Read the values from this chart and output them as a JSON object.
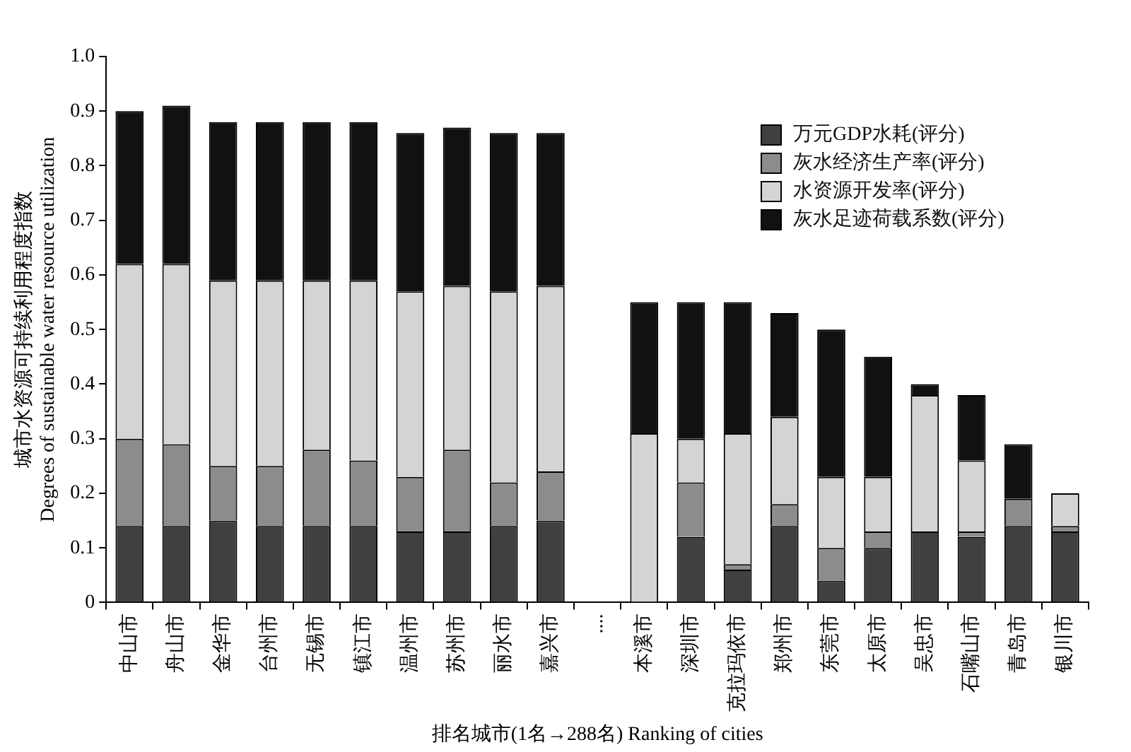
{
  "chart_data": {
    "type": "bar",
    "stacked": true,
    "xlabel": "排名城市(1名→288名) Ranking of cities",
    "ylabel": "城市水资源可持续利用程度指数\nDegrees of sustainable water resource utilization",
    "categories": [
      "中山市",
      "舟山市",
      "金华市",
      "台州市",
      "无锡市",
      "镇江市",
      "温州市",
      "苏州市",
      "丽水市",
      "嘉兴市",
      "....",
      "本溪市",
      "深圳市",
      "克拉玛依市",
      "郑州市",
      "东莞市",
      "太原市",
      "吴忠市",
      "石嘴山市",
      "青岛市",
      "银川市"
    ],
    "series": [
      {
        "name": "万元GDP水耗(评分)",
        "color": "#404040",
        "values": [
          0.14,
          0.14,
          0.15,
          0.14,
          0.14,
          0.14,
          0.13,
          0.13,
          0.14,
          0.15,
          null,
          0,
          0.12,
          0.06,
          0.14,
          0.04,
          0.1,
          0.13,
          0.12,
          0.14,
          0.13
        ]
      },
      {
        "name": "灰水经济生产率(评分)",
        "color": "#8c8c8c",
        "values": [
          0.16,
          0.15,
          0.1,
          0.11,
          0.14,
          0.12,
          0.1,
          0.15,
          0.08,
          0.09,
          null,
          0,
          0.1,
          0.01,
          0.04,
          0.06,
          0.03,
          0,
          0.01,
          0.05,
          0.01
        ]
      },
      {
        "name": "水资源开发率(评分)",
        "color": "#d4d4d4",
        "values": [
          0.32,
          0.33,
          0.34,
          0.34,
          0.31,
          0.33,
          0.34,
          0.3,
          0.35,
          0.34,
          null,
          0.31,
          0.08,
          0.24,
          0.16,
          0.13,
          0.1,
          0.25,
          0.13,
          0,
          0.06
        ]
      },
      {
        "name": "灰水足迹荷载系数(评分)",
        "color": "#111111",
        "values": [
          0.28,
          0.29,
          0.29,
          0.29,
          0.29,
          0.29,
          0.29,
          0.29,
          0.29,
          0.28,
          null,
          0.24,
          0.25,
          0.24,
          0.19,
          0.27,
          0.22,
          0.02,
          0.12,
          0.1,
          0
        ]
      }
    ],
    "ylim": [
      0,
      1
    ],
    "yticks": [
      0,
      0.1,
      0.2,
      0.3,
      0.4,
      0.5,
      0.6,
      0.7,
      0.8,
      0.9,
      {
        "value": 1,
        "label": "1.0"
      }
    ],
    "grid": false,
    "legend": "top right"
  }
}
